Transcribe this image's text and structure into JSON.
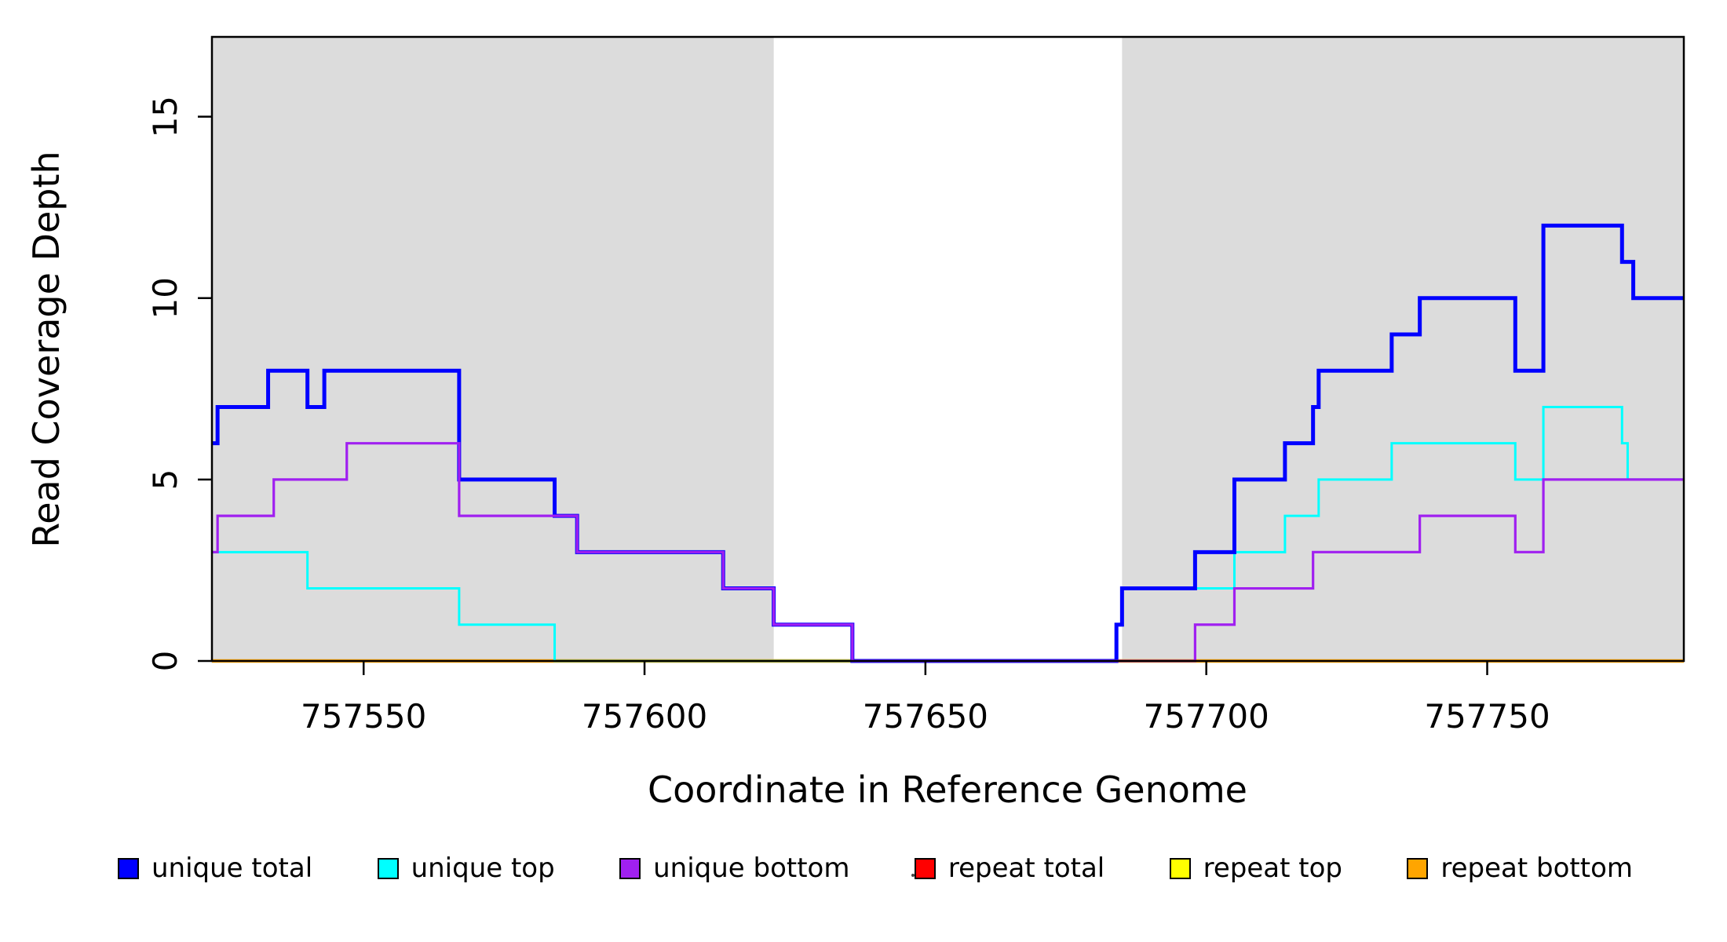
{
  "chart_data": {
    "type": "line",
    "subtype": "step-coverage",
    "title": "",
    "xlabel": "Coordinate in Reference Genome",
    "ylabel": "Read Coverage Depth",
    "xlim": [
      757523,
      757785
    ],
    "ylim": [
      0,
      17.2
    ],
    "x_ticks": [
      757550,
      757600,
      757650,
      757700,
      757750
    ],
    "y_ticks": [
      0,
      5,
      10,
      15
    ],
    "grid": false,
    "legend_position": "bottom",
    "background_color": "#ffffff",
    "band_color": "#dcdcdc",
    "axis_color": "#000000",
    "shaded_regions": [
      {
        "x0": 757523,
        "x1": 757623
      },
      {
        "x0": 757685,
        "x1": 757785
      }
    ],
    "series": [
      {
        "name": "unique total",
        "color": "#0000ff",
        "width": 5,
        "draw_order": 5,
        "steps": [
          [
            757523,
            6
          ],
          [
            757524,
            7
          ],
          [
            757533,
            8
          ],
          [
            757540,
            7
          ],
          [
            757543,
            8
          ],
          [
            757567,
            5
          ],
          [
            757584,
            4
          ],
          [
            757588,
            3
          ],
          [
            757614,
            2
          ],
          [
            757623,
            1
          ],
          [
            757637,
            0
          ],
          [
            757684,
            1
          ],
          [
            757685,
            2
          ],
          [
            757698,
            3
          ],
          [
            757705,
            5
          ],
          [
            757714,
            6
          ],
          [
            757719,
            7
          ],
          [
            757720,
            8
          ],
          [
            757733,
            9
          ],
          [
            757738,
            10
          ],
          [
            757755,
            8
          ],
          [
            757760,
            12
          ],
          [
            757774,
            11
          ],
          [
            757776,
            10
          ]
        ]
      },
      {
        "name": "unique top",
        "color": "#00ffff",
        "width": 3,
        "draw_order": 4,
        "steps": [
          [
            757523,
            3
          ],
          [
            757540,
            2
          ],
          [
            757567,
            1
          ],
          [
            757584,
            0
          ],
          [
            757684,
            1
          ],
          [
            757685,
            2
          ],
          [
            757705,
            3
          ],
          [
            757714,
            4
          ],
          [
            757720,
            5
          ],
          [
            757733,
            6
          ],
          [
            757755,
            5
          ],
          [
            757760,
            7
          ],
          [
            757774,
            6
          ],
          [
            757775,
            5
          ]
        ]
      },
      {
        "name": "unique bottom",
        "color": "#a020f0",
        "width": 3.2,
        "draw_order": 6,
        "steps": [
          [
            757523,
            3
          ],
          [
            757524,
            4
          ],
          [
            757534,
            5
          ],
          [
            757547,
            6
          ],
          [
            757567,
            4
          ],
          [
            757588,
            3
          ],
          [
            757614,
            2
          ],
          [
            757623,
            1
          ],
          [
            757637,
            0
          ],
          [
            757698,
            1
          ],
          [
            757705,
            2
          ],
          [
            757719,
            3
          ],
          [
            757738,
            4
          ],
          [
            757755,
            3
          ],
          [
            757760,
            5
          ]
        ]
      },
      {
        "name": "repeat total",
        "color": "#ff0000",
        "width": 3,
        "draw_order": 1,
        "steps": [
          [
            757523,
            0
          ]
        ]
      },
      {
        "name": "repeat top",
        "color": "#ffff00",
        "width": 3,
        "draw_order": 2,
        "steps": [
          [
            757523,
            0
          ]
        ]
      },
      {
        "name": "repeat bottom",
        "color": "#ffa500",
        "width": 4.5,
        "draw_order": 3,
        "steps": [
          [
            757523,
            0
          ]
        ]
      }
    ]
  },
  "legend": {
    "entries": [
      {
        "label": "unique total",
        "color": "#0000ff"
      },
      {
        "label": "unique top",
        "color": "#00ffff"
      },
      {
        "label": "unique bottom",
        "color": "#a020f0"
      },
      {
        "label": "repeat total",
        "color": "#ff0000"
      },
      {
        "label": "repeat top",
        "color": "#ffff00"
      },
      {
        "label": "repeat bottom",
        "color": "#ffa500"
      }
    ]
  }
}
